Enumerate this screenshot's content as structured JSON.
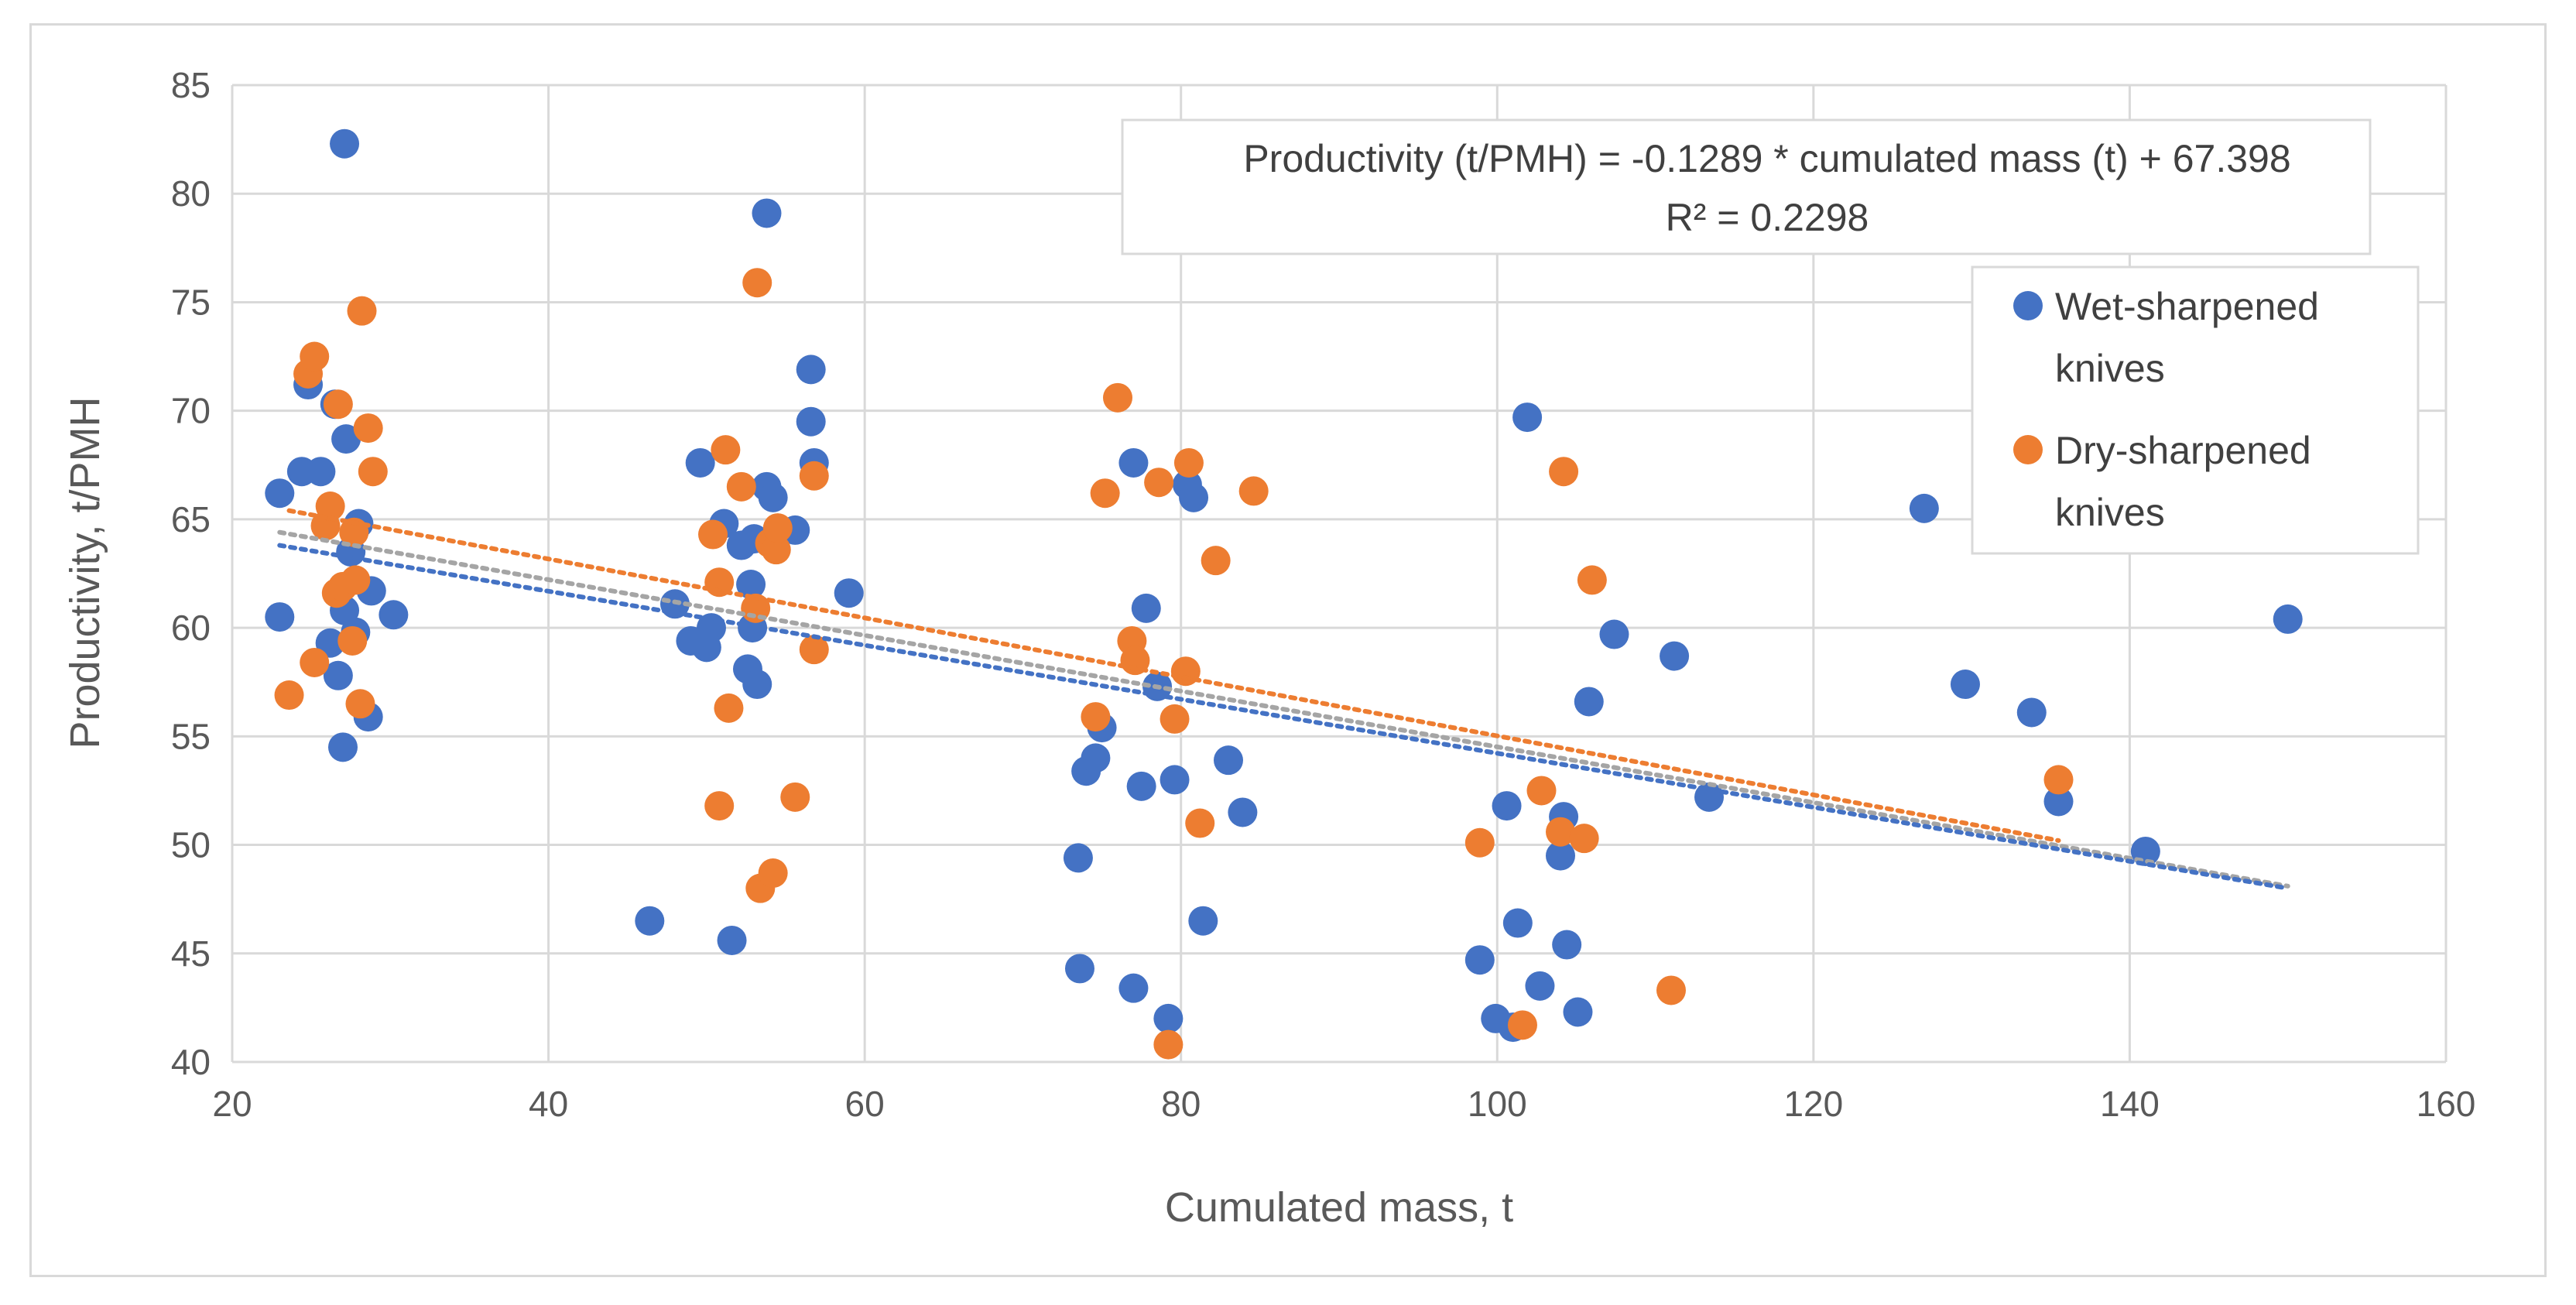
{
  "chart_data": {
    "type": "scatter",
    "title": "",
    "xlabel": "Cumulated mass, t",
    "ylabel": "Productivity, t/PMH",
    "xlim": [
      20,
      160
    ],
    "ylim": [
      40,
      85
    ],
    "xticks": [
      "20",
      "40",
      "60",
      "80",
      "100",
      "120",
      "140",
      "160"
    ],
    "yticks": [
      "40",
      "45",
      "50",
      "55",
      "60",
      "65",
      "70",
      "75",
      "80",
      "85"
    ],
    "grid": true,
    "legend_position": "right",
    "annotation": {
      "line1": "Productivity (t/PMH) = -0.1289 * cumulated mass (t) + 67.398",
      "line2": "R² = 0.2298"
    },
    "series": [
      {
        "name": "Wet-sharpened knives",
        "legend_line1": "Wet-sharpened",
        "legend_line2": "knives",
        "color": "#4472c4",
        "points": [
          [
            23.0,
            66.2
          ],
          [
            23.0,
            60.5
          ],
          [
            24.4,
            67.2
          ],
          [
            24.8,
            71.2
          ],
          [
            25.6,
            67.2
          ],
          [
            26.2,
            59.3
          ],
          [
            26.5,
            70.3
          ],
          [
            26.7,
            57.8
          ],
          [
            27.0,
            54.5
          ],
          [
            27.1,
            82.3
          ],
          [
            27.1,
            60.8
          ],
          [
            27.2,
            68.7
          ],
          [
            27.5,
            63.5
          ],
          [
            27.8,
            59.8
          ],
          [
            28.0,
            64.8
          ],
          [
            28.6,
            55.9
          ],
          [
            28.8,
            61.7
          ],
          [
            30.2,
            60.6
          ],
          [
            46.4,
            46.5
          ],
          [
            48.0,
            61.1
          ],
          [
            49.0,
            59.4
          ],
          [
            49.6,
            67.6
          ],
          [
            50.0,
            59.1
          ],
          [
            50.3,
            60.0
          ],
          [
            51.1,
            64.8
          ],
          [
            51.6,
            45.6
          ],
          [
            52.2,
            63.8
          ],
          [
            52.6,
            58.1
          ],
          [
            52.8,
            62.0
          ],
          [
            52.9,
            60.0
          ],
          [
            53.0,
            64.1
          ],
          [
            53.2,
            57.4
          ],
          [
            53.8,
            66.5
          ],
          [
            53.8,
            79.1
          ],
          [
            54.2,
            66.0
          ],
          [
            55.6,
            64.5
          ],
          [
            56.6,
            71.9
          ],
          [
            56.6,
            69.5
          ],
          [
            56.8,
            67.6
          ],
          [
            59.0,
            61.6
          ],
          [
            73.5,
            49.4
          ],
          [
            73.6,
            44.3
          ],
          [
            74.0,
            53.4
          ],
          [
            74.6,
            54.0
          ],
          [
            75.0,
            55.4
          ],
          [
            77.0,
            67.6
          ],
          [
            77.0,
            43.4
          ],
          [
            77.5,
            52.7
          ],
          [
            77.8,
            60.9
          ],
          [
            78.5,
            57.3
          ],
          [
            79.2,
            42.0
          ],
          [
            79.6,
            53.0
          ],
          [
            80.4,
            66.6
          ],
          [
            80.8,
            66.0
          ],
          [
            81.4,
            46.5
          ],
          [
            83.0,
            53.9
          ],
          [
            83.9,
            51.5
          ],
          [
            98.9,
            44.7
          ],
          [
            99.9,
            42.0
          ],
          [
            100.6,
            51.8
          ],
          [
            101.0,
            41.6
          ],
          [
            101.3,
            46.4
          ],
          [
            101.9,
            69.7
          ],
          [
            102.7,
            43.5
          ],
          [
            104.0,
            49.5
          ],
          [
            104.2,
            51.3
          ],
          [
            104.4,
            45.4
          ],
          [
            105.1,
            42.3
          ],
          [
            105.8,
            56.6
          ],
          [
            107.4,
            59.7
          ],
          [
            111.2,
            58.7
          ],
          [
            113.4,
            52.2
          ],
          [
            127.0,
            65.5
          ],
          [
            129.6,
            57.4
          ],
          [
            133.8,
            56.1
          ],
          [
            135.5,
            52.0
          ],
          [
            141.0,
            49.7
          ],
          [
            150.0,
            60.4
          ]
        ]
      },
      {
        "name": "Dry-sharpened knives",
        "legend_line1": "Dry-sharpened",
        "legend_line2": "knives",
        "color": "#ed7d31",
        "points": [
          [
            23.6,
            56.9
          ],
          [
            24.8,
            71.7
          ],
          [
            25.2,
            72.5
          ],
          [
            25.2,
            58.4
          ],
          [
            25.9,
            64.7
          ],
          [
            26.2,
            65.6
          ],
          [
            26.6,
            61.6
          ],
          [
            26.7,
            70.3
          ],
          [
            27.0,
            61.9
          ],
          [
            27.6,
            59.4
          ],
          [
            27.7,
            64.4
          ],
          [
            27.8,
            62.2
          ],
          [
            28.1,
            56.5
          ],
          [
            28.2,
            74.6
          ],
          [
            28.6,
            69.2
          ],
          [
            28.9,
            67.2
          ],
          [
            50.4,
            64.3
          ],
          [
            50.8,
            62.1
          ],
          [
            50.8,
            51.8
          ],
          [
            51.2,
            68.2
          ],
          [
            51.4,
            56.3
          ],
          [
            52.2,
            66.5
          ],
          [
            53.1,
            60.9
          ],
          [
            53.2,
            75.9
          ],
          [
            53.4,
            48.0
          ],
          [
            54.0,
            63.9
          ],
          [
            54.2,
            48.7
          ],
          [
            54.4,
            63.6
          ],
          [
            54.5,
            64.6
          ],
          [
            55.6,
            52.2
          ],
          [
            56.8,
            59.0
          ],
          [
            56.8,
            67.0
          ],
          [
            74.6,
            55.9
          ],
          [
            75.2,
            66.2
          ],
          [
            76.0,
            70.6
          ],
          [
            76.9,
            59.4
          ],
          [
            77.1,
            58.5
          ],
          [
            78.6,
            66.7
          ],
          [
            79.2,
            40.8
          ],
          [
            79.6,
            55.8
          ],
          [
            80.3,
            58.0
          ],
          [
            80.5,
            67.6
          ],
          [
            81.2,
            51.0
          ],
          [
            82.2,
            63.1
          ],
          [
            84.6,
            66.3
          ],
          [
            98.9,
            50.1
          ],
          [
            101.6,
            41.7
          ],
          [
            102.8,
            52.5
          ],
          [
            104.0,
            50.6
          ],
          [
            104.2,
            67.2
          ],
          [
            105.5,
            50.3
          ],
          [
            106.0,
            62.2
          ],
          [
            111.0,
            43.3
          ],
          [
            135.5,
            53.0
          ]
        ]
      }
    ],
    "trendlines": [
      {
        "name": "Dry-sharpened trend",
        "color": "#ed7d31",
        "x": [
          23.6,
          135.5
        ],
        "y": [
          65.4,
          50.2
        ]
      },
      {
        "name": "Overall trend",
        "color": "#a5a5a5",
        "x": [
          23.0,
          150.0
        ],
        "y": [
          64.4,
          48.1
        ]
      },
      {
        "name": "Wet-sharpened trend",
        "color": "#4472c4",
        "x": [
          23.0,
          150.0
        ],
        "y": [
          63.8,
          48.0
        ]
      }
    ]
  }
}
